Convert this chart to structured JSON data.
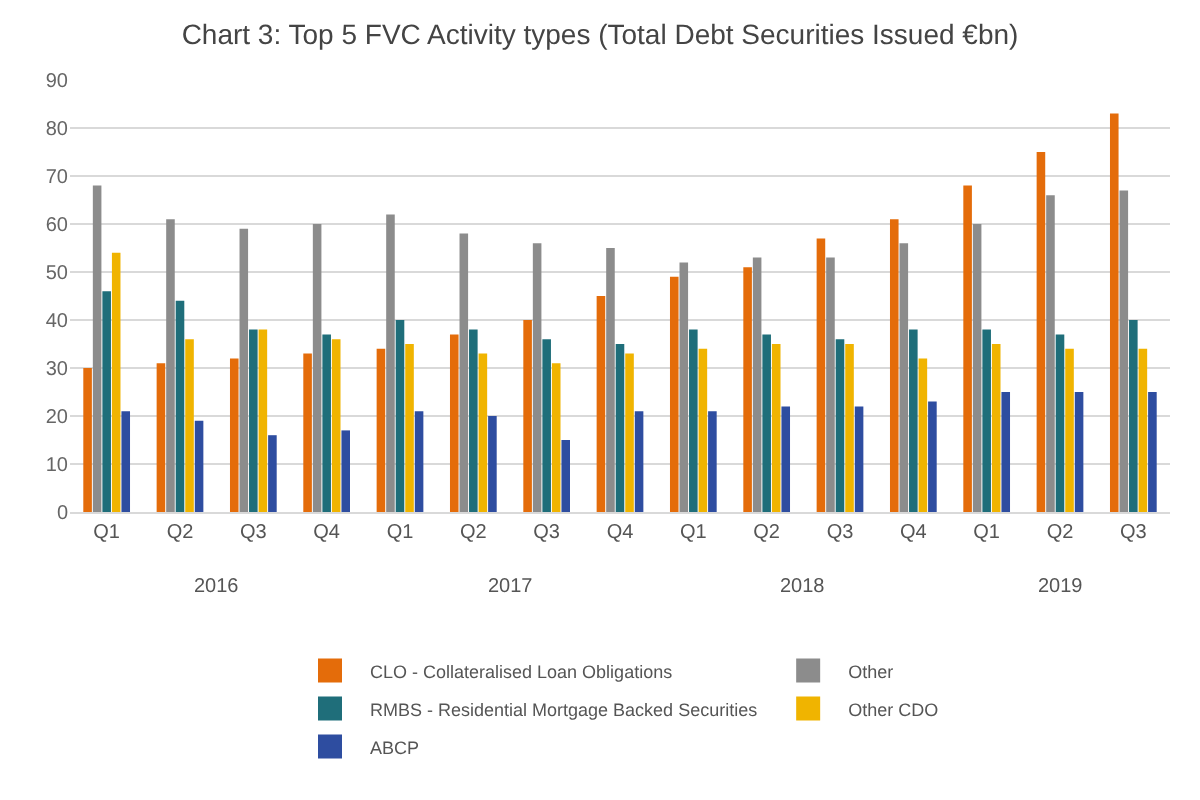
{
  "chart_data": {
    "type": "bar",
    "title": "Chart 3: Top 5 FVC Activity types (Total Debt Securities Issued €bn)",
    "categories": [
      "Q1",
      "Q2",
      "Q3",
      "Q4",
      "Q1",
      "Q2",
      "Q3",
      "Q4",
      "Q1",
      "Q2",
      "Q3",
      "Q4",
      "Q1",
      "Q2",
      "Q3"
    ],
    "annotations": [
      "2016",
      "2017",
      "2018",
      "2019"
    ],
    "series": [
      {
        "name": "CLO - Collateralised Loan Obligations",
        "color": "#e46c0a",
        "values": [
          30,
          31,
          32,
          33,
          34,
          37,
          40,
          45,
          49,
          51,
          57,
          61,
          68,
          75,
          83
        ]
      },
      {
        "name": "Other",
        "color": "#8c8c8c",
        "values": [
          68,
          61,
          59,
          60,
          62,
          58,
          56,
          55,
          52,
          53,
          53,
          56,
          60,
          66,
          67
        ]
      },
      {
        "name": "RMBS - Residential Mortgage Backed Securities",
        "color": "#1f6e7a",
        "values": [
          46,
          44,
          38,
          37,
          40,
          38,
          36,
          35,
          38,
          37,
          36,
          38,
          38,
          37,
          40
        ]
      },
      {
        "name": "Other CDO",
        "color": "#f0b400",
        "values": [
          54,
          36,
          38,
          36,
          35,
          33,
          31,
          33,
          34,
          35,
          35,
          32,
          35,
          34,
          34
        ]
      },
      {
        "name": "ABCP",
        "color": "#2e4da0",
        "values": [
          21,
          19,
          16,
          17,
          21,
          20,
          15,
          21,
          21,
          22,
          22,
          23,
          25,
          25,
          25
        ]
      }
    ],
    "ylim": [
      0,
      90
    ],
    "yticks": [
      0,
      10,
      20,
      30,
      40,
      50,
      60,
      70,
      80,
      90
    ],
    "grid": "y",
    "legend": "bottom"
  }
}
